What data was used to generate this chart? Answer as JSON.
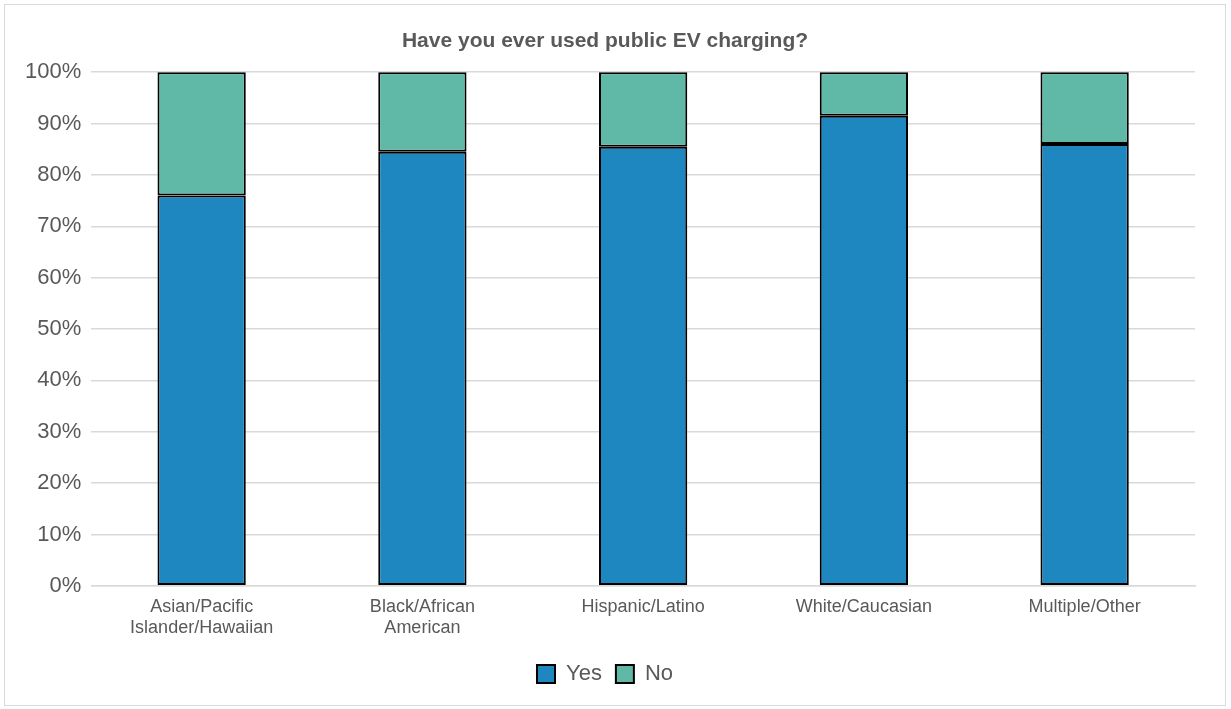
{
  "chart_data": {
    "type": "bar",
    "title": "Have you ever used public EV charging?",
    "stacked": true,
    "categories": [
      "Asian/Pacific Islander/Hawaiian",
      "Black/African American",
      "Hispanic/Latino",
      "White/Caucasian",
      "Multiple/Other"
    ],
    "series": [
      {
        "name": "Yes",
        "color": "#1f87bf",
        "values": [
          76,
          84.5,
          85.5,
          91.5,
          86
        ]
      },
      {
        "name": "No",
        "color": "#5fb9a6",
        "values": [
          24,
          15.5,
          14.5,
          8.5,
          14
        ]
      }
    ],
    "ylim": [
      0,
      100
    ],
    "yticks": [
      {
        "value": 0,
        "label": "0%"
      },
      {
        "value": 10,
        "label": "10%"
      },
      {
        "value": 20,
        "label": "20%"
      },
      {
        "value": 30,
        "label": "30%"
      },
      {
        "value": 40,
        "label": "40%"
      },
      {
        "value": 50,
        "label": "50%"
      },
      {
        "value": 60,
        "label": "60%"
      },
      {
        "value": 70,
        "label": "70%"
      },
      {
        "value": 80,
        "label": "80%"
      },
      {
        "value": 90,
        "label": "90%"
      },
      {
        "value": 100,
        "label": "100%"
      }
    ],
    "grid": "y",
    "legend": "bottom"
  }
}
